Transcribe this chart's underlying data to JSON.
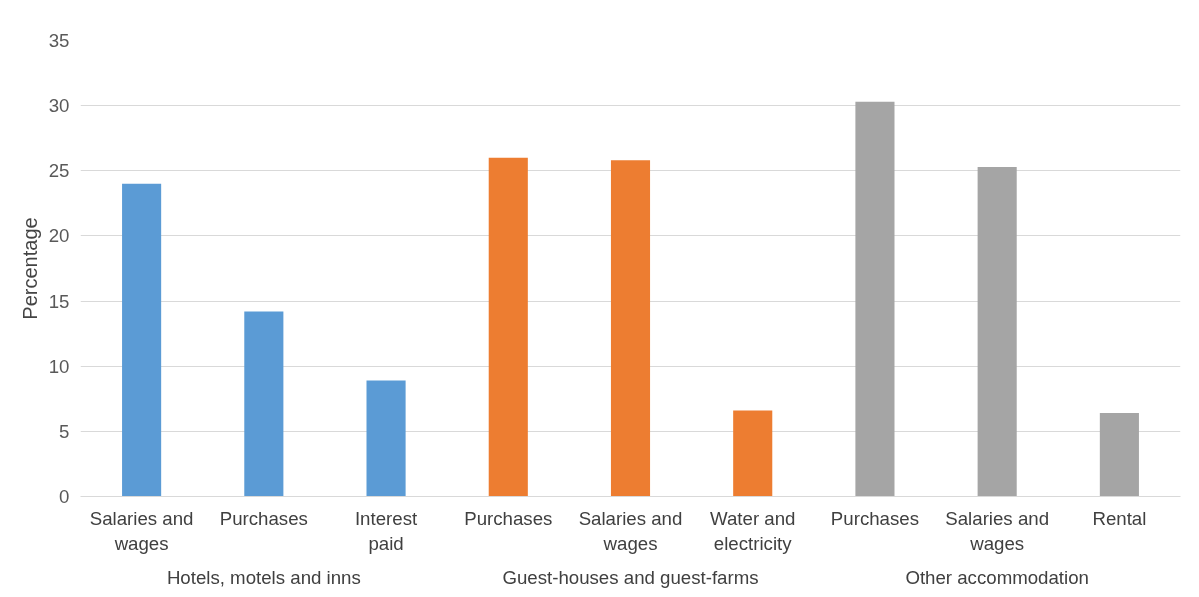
{
  "chart_data": {
    "type": "bar",
    "ylabel": "Percentage",
    "categories": [
      "Salaries and wages",
      "Purchases",
      "Interest paid",
      "Purchases",
      "Salaries and wages",
      "Water and electricity",
      "Purchases",
      "Salaries and wages",
      "Rental"
    ],
    "values": [
      24.0,
      14.2,
      8.9,
      26.0,
      25.8,
      6.6,
      30.3,
      25.3,
      6.4
    ],
    "colors": [
      "#5b9bd5",
      "#5b9bd5",
      "#5b9bd5",
      "#ed7d31",
      "#ed7d31",
      "#ed7d31",
      "#a5a5a5",
      "#a5a5a5",
      "#a5a5a5"
    ],
    "annotations": [
      "Hotels, motels and inns",
      "Guest-houses and guest-farms",
      "Other accommodation"
    ],
    "ylim": [
      0,
      35
    ],
    "yticks": [
      0,
      5,
      10,
      15,
      20,
      25,
      30,
      35
    ],
    "grid": "y"
  }
}
